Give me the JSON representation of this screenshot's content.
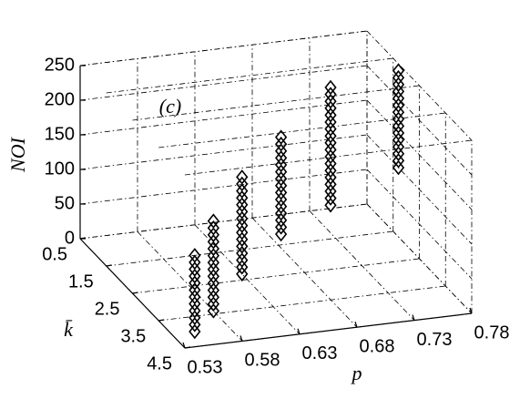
{
  "chart_data": {
    "type": "scatter3d",
    "annotation": "(c)",
    "xlabel": "p",
    "ylabel": "k̄",
    "zlabel": "NOI",
    "xlim": [
      0.53,
      0.78
    ],
    "xticks": [
      0.53,
      0.58,
      0.63,
      0.68,
      0.73,
      0.78
    ],
    "ylim": [
      0.5,
      4.5
    ],
    "yticks": [
      0.5,
      1.5,
      2.5,
      3.5,
      4.5
    ],
    "zlim": [
      0,
      250
    ],
    "zticks": [
      0,
      50,
      100,
      150,
      200,
      250
    ],
    "grid": true,
    "color": "#000000",
    "series": [
      {
        "x": [
          0.55,
          0.55,
          0.55,
          0.55,
          0.55,
          0.55,
          0.55,
          0.55,
          0.55,
          0.55,
          0.55,
          0.55
        ],
        "y": [
          4.0,
          4.0,
          4.0,
          4.0,
          4.0,
          4.0,
          4.0,
          4.0,
          4.0,
          4.0,
          4.0,
          4.0
        ],
        "z": [
          0,
          10,
          20,
          30,
          40,
          50,
          60,
          70,
          80,
          90,
          100,
          110
        ]
      },
      {
        "x": [
          0.58,
          0.58,
          0.58,
          0.58,
          0.58,
          0.58,
          0.58,
          0.58,
          0.58,
          0.58,
          0.58,
          0.58,
          0.58,
          0.58
        ],
        "y": [
          3.4,
          3.4,
          3.4,
          3.4,
          3.4,
          3.4,
          3.4,
          3.4,
          3.4,
          3.4,
          3.4,
          3.4,
          3.4,
          3.4
        ],
        "z": [
          0,
          10,
          20,
          30,
          40,
          50,
          60,
          70,
          80,
          90,
          100,
          110,
          120,
          130
        ]
      },
      {
        "x": [
          0.63,
          0.63,
          0.63,
          0.63,
          0.63,
          0.63,
          0.63,
          0.63,
          0.63,
          0.63,
          0.63,
          0.63,
          0.63,
          0.63,
          0.63
        ],
        "y": [
          2.3,
          2.3,
          2.3,
          2.3,
          2.3,
          2.3,
          2.3,
          2.3,
          2.3,
          2.3,
          2.3,
          2.3,
          2.3,
          2.3,
          2.3
        ],
        "z": [
          0,
          10,
          20,
          30,
          40,
          50,
          60,
          70,
          80,
          90,
          100,
          110,
          120,
          130,
          140
        ]
      },
      {
        "x": [
          0.68,
          0.68,
          0.68,
          0.68,
          0.68,
          0.68,
          0.68,
          0.68,
          0.68,
          0.68,
          0.68,
          0.68,
          0.68,
          0.68,
          0.68
        ],
        "y": [
          1.6,
          1.6,
          1.6,
          1.6,
          1.6,
          1.6,
          1.6,
          1.6,
          1.6,
          1.6,
          1.6,
          1.6,
          1.6,
          1.6,
          1.6
        ],
        "z": [
          20,
          30,
          40,
          50,
          60,
          70,
          80,
          90,
          100,
          110,
          120,
          130,
          140,
          150,
          160
        ]
      },
      {
        "x": [
          0.73,
          0.73,
          0.73,
          0.73,
          0.73,
          0.73,
          0.73,
          0.73,
          0.73,
          0.73,
          0.73,
          0.73,
          0.73,
          0.73,
          0.73,
          0.73,
          0.73,
          0.73
        ],
        "y": [
          1.3,
          1.3,
          1.3,
          1.3,
          1.3,
          1.3,
          1.3,
          1.3,
          1.3,
          1.3,
          1.3,
          1.3,
          1.3,
          1.3,
          1.3,
          1.3,
          1.3,
          1.3
        ],
        "z": [
          40,
          50,
          60,
          70,
          80,
          90,
          100,
          110,
          120,
          130,
          140,
          150,
          160,
          170,
          180,
          190,
          200,
          210
        ]
      },
      {
        "x": [
          0.78,
          0.78,
          0.78,
          0.78,
          0.78,
          0.78,
          0.78,
          0.78,
          0.78,
          0.78,
          0.78,
          0.78,
          0.78,
          0.78,
          0.78
        ],
        "y": [
          1.7,
          1.7,
          1.7,
          1.7,
          1.7,
          1.7,
          1.7,
          1.7,
          1.7,
          1.7,
          1.7,
          1.7,
          1.7,
          1.7,
          1.7
        ],
        "z": [
          100,
          110,
          120,
          130,
          140,
          150,
          160,
          170,
          180,
          190,
          200,
          210,
          220,
          230,
          240
        ]
      }
    ]
  }
}
